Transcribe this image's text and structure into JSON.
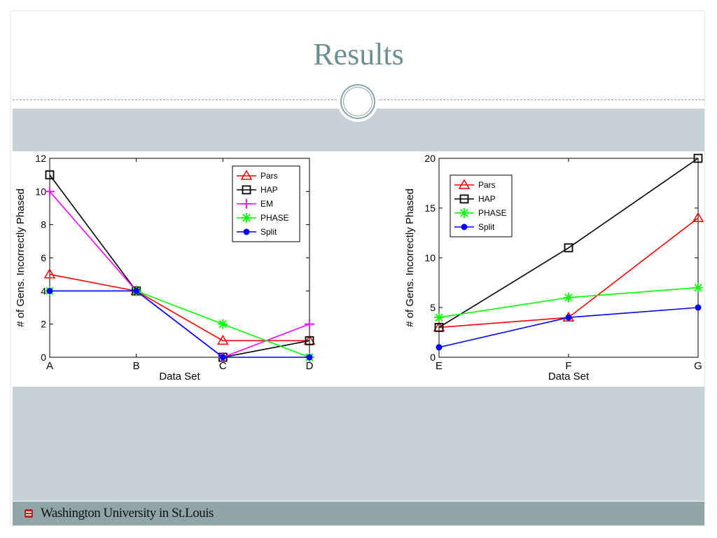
{
  "slide": {
    "title": "Results",
    "footer_text": "Washington University in St.Louis"
  },
  "colors": {
    "title": "#6e8f92",
    "band": "#c6d2d7",
    "footer": "#8fa5a7",
    "Pars": "#ff0000",
    "HAP": "#000000",
    "EM": "#ff00ff",
    "PHASE": "#00ff00",
    "Split": "#0000ff"
  },
  "chart_data": [
    {
      "type": "line",
      "categories": [
        "A",
        "B",
        "C",
        "D"
      ],
      "xlabel": "Data Set",
      "ylabel": "# of Gens. Incorrectly Phased",
      "ylim": [
        0,
        12
      ],
      "yticks": [
        0,
        2,
        4,
        6,
        8,
        10,
        12
      ],
      "legend_position": "top-right",
      "series": [
        {
          "name": "Pars",
          "values": [
            5,
            4,
            1,
            1
          ],
          "marker": "triangle",
          "color": "#ff0000"
        },
        {
          "name": "HAP",
          "values": [
            11,
            4,
            0,
            1
          ],
          "marker": "square",
          "color": "#000000"
        },
        {
          "name": "EM",
          "values": [
            10,
            4,
            0,
            2
          ],
          "marker": "plus",
          "color": "#ff00ff"
        },
        {
          "name": "PHASE",
          "values": [
            4,
            4,
            2,
            0
          ],
          "marker": "star",
          "color": "#00ff00"
        },
        {
          "name": "Split",
          "values": [
            4,
            4,
            0,
            0
          ],
          "marker": "dot",
          "color": "#0000ff"
        }
      ]
    },
    {
      "type": "line",
      "categories": [
        "E",
        "F",
        "G"
      ],
      "xlabel": "Data Set",
      "ylabel": "# of Gens. Incorrectly Phased",
      "ylim": [
        0,
        20
      ],
      "yticks": [
        0,
        5,
        10,
        15,
        20
      ],
      "legend_position": "top-left",
      "series": [
        {
          "name": "Pars",
          "values": [
            3,
            4,
            14
          ],
          "marker": "triangle",
          "color": "#ff0000"
        },
        {
          "name": "HAP",
          "values": [
            3,
            11,
            20
          ],
          "marker": "square",
          "color": "#000000"
        },
        {
          "name": "PHASE",
          "values": [
            4,
            6,
            7
          ],
          "marker": "star",
          "color": "#00ff00"
        },
        {
          "name": "Split",
          "values": [
            1,
            4,
            5
          ],
          "marker": "dot",
          "color": "#0000ff"
        }
      ]
    }
  ]
}
